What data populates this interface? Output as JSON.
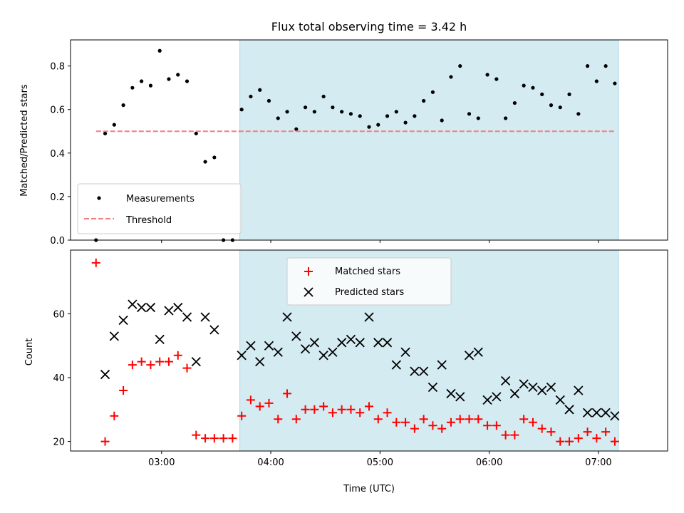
{
  "chart_data": [
    {
      "type": "scatter",
      "title": "Flux total observing time = 3.42 h",
      "ylabel": "Matched/Predicted stars",
      "xlabel": "",
      "xlim": [
        "02:10",
        "07:38"
      ],
      "ylim": [
        0,
        0.92
      ],
      "yticks": [
        "0.0",
        "0.2",
        "0.4",
        "0.6",
        "0.8"
      ],
      "grid": false,
      "legend_position": "lower-left",
      "shaded_span": [
        "03:43",
        "07:11"
      ],
      "series": [
        {
          "name": "Measurements",
          "kind": "points",
          "color": "#000000",
          "points": [
            [
              "02:24",
              0.0
            ],
            [
              "02:29",
              0.49
            ],
            [
              "02:34",
              0.53
            ],
            [
              "02:39",
              0.62
            ],
            [
              "02:44",
              0.7
            ],
            [
              "02:49",
              0.73
            ],
            [
              "02:54",
              0.71
            ],
            [
              "02:59",
              0.87
            ],
            [
              "03:04",
              0.74
            ],
            [
              "03:09",
              0.76
            ],
            [
              "03:14",
              0.73
            ],
            [
              "03:19",
              0.49
            ],
            [
              "03:24",
              0.36
            ],
            [
              "03:29",
              0.38
            ],
            [
              "03:34",
              0.0
            ],
            [
              "03:39",
              0.0
            ],
            [
              "03:44",
              0.6
            ],
            [
              "03:49",
              0.66
            ],
            [
              "03:54",
              0.69
            ],
            [
              "03:59",
              0.64
            ],
            [
              "04:04",
              0.56
            ],
            [
              "04:09",
              0.59
            ],
            [
              "04:14",
              0.51
            ],
            [
              "04:19",
              0.61
            ],
            [
              "04:24",
              0.59
            ],
            [
              "04:29",
              0.66
            ],
            [
              "04:34",
              0.61
            ],
            [
              "04:39",
              0.59
            ],
            [
              "04:44",
              0.58
            ],
            [
              "04:49",
              0.57
            ],
            [
              "04:54",
              0.52
            ],
            [
              "04:59",
              0.53
            ],
            [
              "05:04",
              0.57
            ],
            [
              "05:09",
              0.59
            ],
            [
              "05:14",
              0.54
            ],
            [
              "05:19",
              0.57
            ],
            [
              "05:24",
              0.64
            ],
            [
              "05:29",
              0.68
            ],
            [
              "05:34",
              0.55
            ],
            [
              "05:39",
              0.75
            ],
            [
              "05:44",
              0.8
            ],
            [
              "05:49",
              0.58
            ],
            [
              "05:54",
              0.56
            ],
            [
              "05:59",
              0.76
            ],
            [
              "06:04",
              0.74
            ],
            [
              "06:09",
              0.56
            ],
            [
              "06:14",
              0.63
            ],
            [
              "06:19",
              0.71
            ],
            [
              "06:24",
              0.7
            ],
            [
              "06:29",
              0.67
            ],
            [
              "06:34",
              0.62
            ],
            [
              "06:39",
              0.61
            ],
            [
              "06:44",
              0.67
            ],
            [
              "06:49",
              0.58
            ],
            [
              "06:54",
              0.8
            ],
            [
              "06:59",
              0.73
            ],
            [
              "07:04",
              0.8
            ],
            [
              "07:09",
              0.72
            ]
          ]
        },
        {
          "name": "Threshold",
          "kind": "dashed-line",
          "color": "#f08080",
          "x": [
            "02:24",
            "07:09"
          ],
          "y": [
            0.5,
            0.5
          ]
        }
      ]
    },
    {
      "type": "scatter",
      "title": "",
      "ylabel": "Count",
      "xlabel": "Time (UTC)",
      "xlim": [
        "02:10",
        "07:38"
      ],
      "xticks": [
        "03:00",
        "04:00",
        "05:00",
        "06:00",
        "07:00"
      ],
      "ylim": [
        17,
        80
      ],
      "yticks": [
        "20",
        "40",
        "60"
      ],
      "grid": false,
      "legend_position": "top-center",
      "shaded_span": [
        "03:43",
        "07:11"
      ],
      "series": [
        {
          "name": "Matched stars",
          "kind": "plus",
          "color": "#ff0000",
          "points": [
            [
              "02:24",
              76
            ],
            [
              "02:29",
              20
            ],
            [
              "02:34",
              28
            ],
            [
              "02:39",
              36
            ],
            [
              "02:44",
              44
            ],
            [
              "02:49",
              45
            ],
            [
              "02:54",
              44
            ],
            [
              "02:59",
              45
            ],
            [
              "03:04",
              45
            ],
            [
              "03:09",
              47
            ],
            [
              "03:14",
              43
            ],
            [
              "03:19",
              22
            ],
            [
              "03:24",
              21
            ],
            [
              "03:29",
              21
            ],
            [
              "03:34",
              21
            ],
            [
              "03:39",
              21
            ],
            [
              "03:44",
              28
            ],
            [
              "03:49",
              33
            ],
            [
              "03:54",
              31
            ],
            [
              "03:59",
              32
            ],
            [
              "04:04",
              27
            ],
            [
              "04:09",
              35
            ],
            [
              "04:14",
              27
            ],
            [
              "04:19",
              30
            ],
            [
              "04:24",
              30
            ],
            [
              "04:29",
              31
            ],
            [
              "04:34",
              29
            ],
            [
              "04:39",
              30
            ],
            [
              "04:44",
              30
            ],
            [
              "04:49",
              29
            ],
            [
              "04:54",
              31
            ],
            [
              "04:59",
              27
            ],
            [
              "05:04",
              29
            ],
            [
              "05:09",
              26
            ],
            [
              "05:14",
              26
            ],
            [
              "05:19",
              24
            ],
            [
              "05:24",
              27
            ],
            [
              "05:29",
              25
            ],
            [
              "05:34",
              24
            ],
            [
              "05:39",
              26
            ],
            [
              "05:44",
              27
            ],
            [
              "05:49",
              27
            ],
            [
              "05:54",
              27
            ],
            [
              "05:59",
              25
            ],
            [
              "06:04",
              25
            ],
            [
              "06:09",
              22
            ],
            [
              "06:14",
              22
            ],
            [
              "06:19",
              27
            ],
            [
              "06:24",
              26
            ],
            [
              "06:29",
              24
            ],
            [
              "06:34",
              23
            ],
            [
              "06:39",
              20
            ],
            [
              "06:44",
              20
            ],
            [
              "06:49",
              21
            ],
            [
              "06:54",
              23
            ],
            [
              "06:59",
              21
            ],
            [
              "07:04",
              23
            ],
            [
              "07:09",
              20
            ]
          ]
        },
        {
          "name": "Predicted stars",
          "kind": "x",
          "color": "#000000",
          "points": [
            [
              "02:29",
              41
            ],
            [
              "02:34",
              53
            ],
            [
              "02:39",
              58
            ],
            [
              "02:44",
              63
            ],
            [
              "02:49",
              62
            ],
            [
              "02:54",
              62
            ],
            [
              "02:59",
              52
            ],
            [
              "03:04",
              61
            ],
            [
              "03:09",
              62
            ],
            [
              "03:14",
              59
            ],
            [
              "03:19",
              45
            ],
            [
              "03:24",
              59
            ],
            [
              "03:29",
              55
            ],
            [
              "03:44",
              47
            ],
            [
              "03:49",
              50
            ],
            [
              "03:54",
              45
            ],
            [
              "03:59",
              50
            ],
            [
              "04:04",
              48
            ],
            [
              "04:09",
              59
            ],
            [
              "04:14",
              53
            ],
            [
              "04:19",
              49
            ],
            [
              "04:24",
              51
            ],
            [
              "04:29",
              47
            ],
            [
              "04:34",
              48
            ],
            [
              "04:39",
              51
            ],
            [
              "04:44",
              52
            ],
            [
              "04:49",
              51
            ],
            [
              "04:54",
              59
            ],
            [
              "04:59",
              51
            ],
            [
              "05:04",
              51
            ],
            [
              "05:09",
              44
            ],
            [
              "05:14",
              48
            ],
            [
              "05:19",
              42
            ],
            [
              "05:24",
              42
            ],
            [
              "05:29",
              37
            ],
            [
              "05:34",
              44
            ],
            [
              "05:39",
              35
            ],
            [
              "05:44",
              34
            ],
            [
              "05:49",
              47
            ],
            [
              "05:54",
              48
            ],
            [
              "05:59",
              33
            ],
            [
              "06:04",
              34
            ],
            [
              "06:09",
              39
            ],
            [
              "06:14",
              35
            ],
            [
              "06:19",
              38
            ],
            [
              "06:24",
              37
            ],
            [
              "06:29",
              36
            ],
            [
              "06:34",
              37
            ],
            [
              "06:39",
              33
            ],
            [
              "06:44",
              30
            ],
            [
              "06:49",
              36
            ],
            [
              "06:54",
              29
            ],
            [
              "06:59",
              29
            ],
            [
              "07:04",
              29
            ],
            [
              "07:09",
              28
            ]
          ]
        }
      ]
    }
  ],
  "colors": {
    "shade": "#d4ebf1",
    "shade_edge": "#add8e6",
    "measurements": "#000000",
    "threshold": "#f08080",
    "matched": "#ff0000",
    "predicted": "#000000"
  }
}
